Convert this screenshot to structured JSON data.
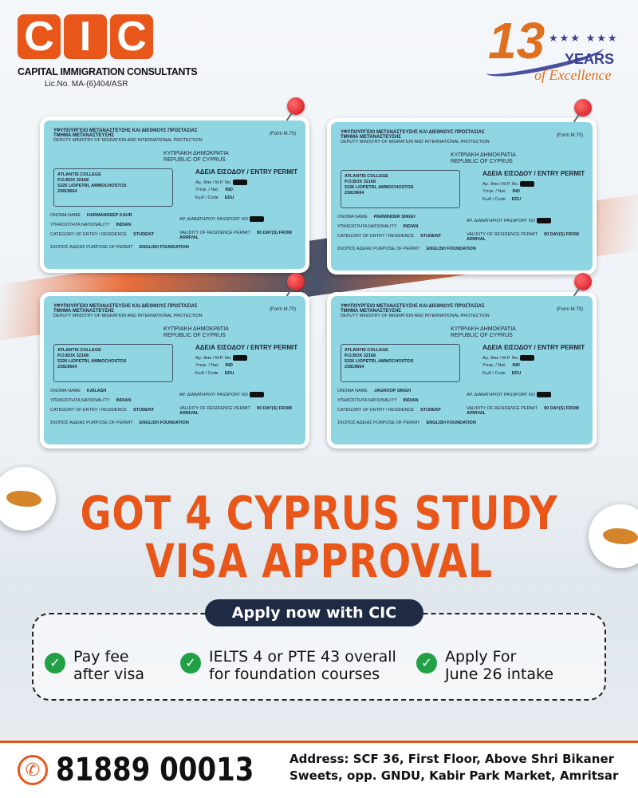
{
  "brand": {
    "letters": [
      "C",
      "I",
      "C"
    ],
    "name": "CAPITAL IMMIGRATION CONSULTANTS",
    "license": "Lic.No. MA-(6)404/ASR",
    "accent": "#e8561a",
    "navy": "#1f2b45"
  },
  "badge": {
    "number": "13",
    "stars": "★★★ ★★★",
    "years": "YEARS",
    "tagline": "of Excellence"
  },
  "permit_common": {
    "ministry": "ΥΦΥΠΟΥΡΓΕΙΟ ΜΕΤΑΝΑΣΤΕΥΣΗΣ ΚΑΙ ΔΙΕΘΝΟΥΣ ΠΡΟΣΤΑΣΙΑΣ",
    "dept": "ΤΜΗΜΑ ΜΕΤΑΝΑΣΤΕΥΣΗΣ",
    "dept_en": "DEPUTY MINISTRY OF MIGRATION AND INTERNATIONAL PROTECTION",
    "republic_gr": "ΚΥΠΡΙΑΚΗ ΔΗΜΟΚΡΑΤΙΑ",
    "republic_en": "REPUBLIC OF CYPRUS",
    "form": "(Form M.70)",
    "title": "ΑΔΕΙΑ ΕΙΣΟΔΟΥ / ENTRY PERMIT",
    "address": [
      "ATLANTIS COLLEGE",
      "P.O.BOX 32168",
      "5326 LIOPETRI, AMMOCHOSTOS",
      "23819664"
    ],
    "nat_label": "Υπηκ. / Nat.",
    "nat": "IND",
    "code_label": "Κωδ / Code",
    "code": "EDU",
    "mp_label": "Αρ. Φακ / M.P. No.",
    "name_label": "ΟΝΟΜΑ NAME",
    "nationality_label": "ΥΠΗΚΟΟΤΗΤΑ NATIONALITY",
    "nationality": "INDIAN",
    "category_label": "CATEGORY OF ENTRY / RESIDENCE",
    "category": "STUDENT",
    "purpose_label": "ΣΚΟΠΟΣ ΑΔΕΙΑΣ PURPOSE OF PERMIT",
    "purpose": "ENGLISH FOUNDATION",
    "passport_label": "ΑΡ. ΔΙΑΒΑΤΗΡΙΟΥ PASSPORT NO",
    "validity_label": "VALIDITY OF RESIDENCE PERMIT",
    "validity": "90 DAY(S) FROM ARRIVAL"
  },
  "permits": [
    {
      "name": "HARMANDEEP KAUR"
    },
    {
      "name": "PARMINDER SINGH"
    },
    {
      "name": "KAILASH"
    },
    {
      "name": "JAGROOP SINGH"
    }
  ],
  "headline": {
    "line1": "GOT 4 CYPRUS STUDY",
    "line2": "VISA APPROVAL"
  },
  "cta": "Apply now with CIC",
  "features": [
    {
      "icon": "check-circle-icon",
      "line1": "Pay fee",
      "line2": "after visa"
    },
    {
      "icon": "check-circle-icon",
      "line1": "IELTS 4 or PTE 43 overall",
      "line2": "for foundation courses"
    },
    {
      "icon": "check-circle-icon",
      "line1": "Apply For",
      "line2": "June 26 intake"
    }
  ],
  "footer": {
    "phone": "81889 00013",
    "address": "Address: SCF 36, First Floor, Above Shri Bikaner Sweets, opp. GNDU, Kabir Park Market, Amritsar"
  }
}
